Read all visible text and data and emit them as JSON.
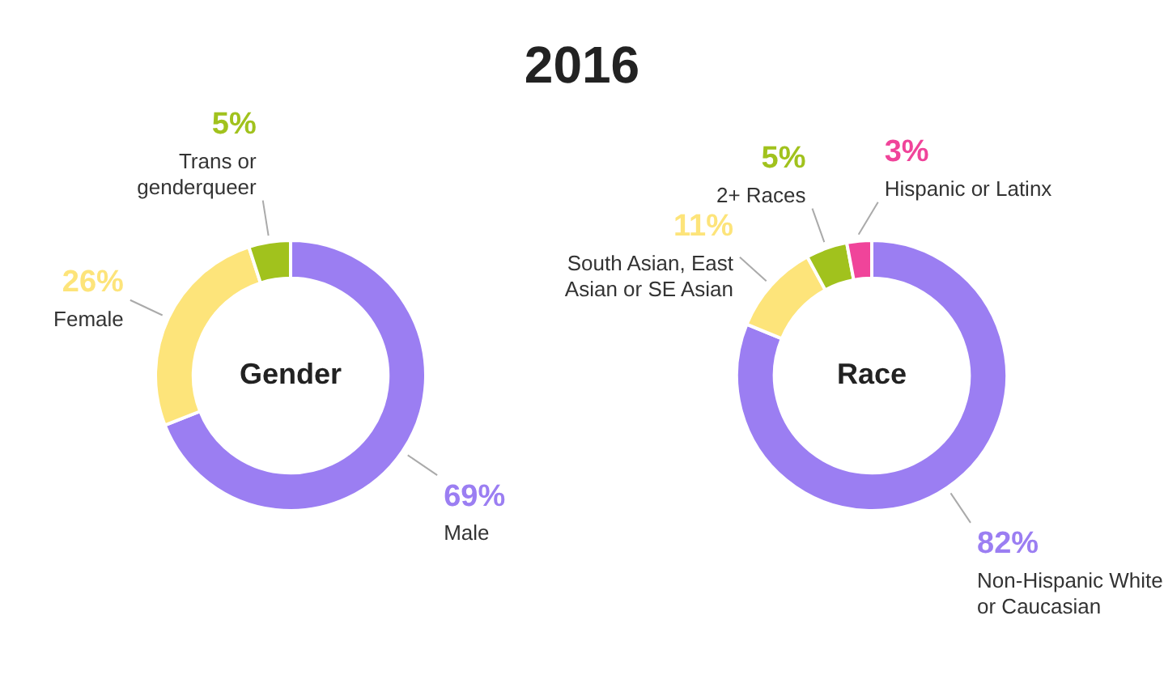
{
  "chart_data": [
    {
      "type": "donut",
      "title": "Gender",
      "annotations": [
        "2016"
      ],
      "categories": [
        "Male",
        "Female",
        "Trans or genderqueer"
      ],
      "values": [
        69,
        26,
        5
      ],
      "colors": [
        "#9b7ef2",
        "#fde47a",
        "#a1c21d"
      ],
      "value_labels": [
        "69%",
        "26%",
        "5%"
      ]
    },
    {
      "type": "donut",
      "title": "Race",
      "categories": [
        "Non-Hispanic White or Caucasian",
        "South Asian, East Asian or SE Asian",
        "2+ Races",
        "Hispanic or Latinx"
      ],
      "values": [
        82,
        11,
        5,
        3
      ],
      "colors": [
        "#9b7ef2",
        "#fde47a",
        "#a1c21d",
        "#f0449a"
      ],
      "value_labels": [
        "82%",
        "11%",
        "5%",
        "3%"
      ]
    }
  ]
}
